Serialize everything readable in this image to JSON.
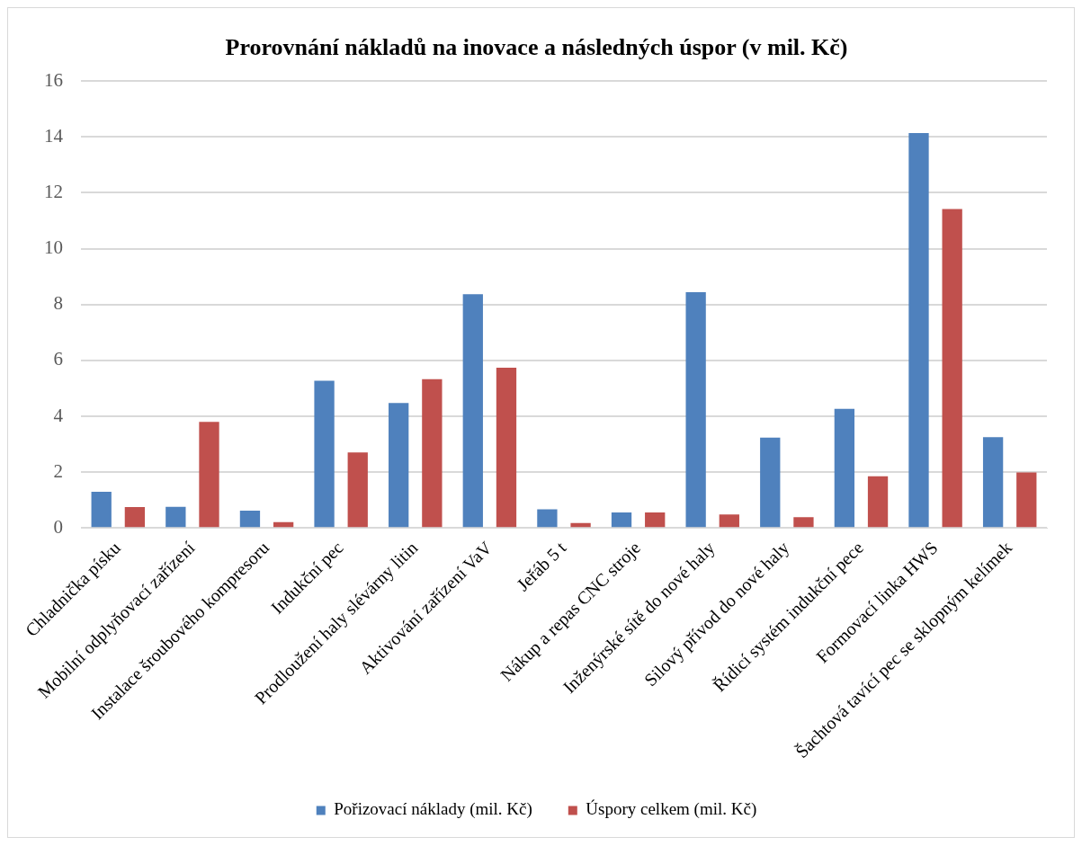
{
  "chart_data": {
    "type": "bar",
    "title": "Prorovnání nákladů na inovace a následných úspor (v mil. Kč)",
    "categories": [
      "Chladnička písku",
      "Mobilní odplyňovací zařízení",
      "Instalace šroubového kompresoru",
      "Indukční pec",
      "Prodloužení haly slévárny litin",
      "Aktivování zařízení VaV",
      "Jeřáb 5 t",
      "Nákup a repas CNC stroje",
      "Inženýrské sítě do nové haly",
      "Silový přívod do nové haly",
      "Řídicí systém indukční pece",
      "Formovací linka HWS",
      "Šachtová tavící pec se sklopným kelímek"
    ],
    "series": [
      {
        "name": "Pořizovací náklady (mil. Kč)",
        "color": "#4f81bd",
        "values": [
          1.3,
          0.76,
          0.62,
          5.27,
          4.48,
          8.37,
          0.67,
          0.56,
          8.44,
          3.24,
          4.27,
          14.14,
          3.25
        ]
      },
      {
        "name": "Úspory celkem (mil. Kč)",
        "color": "#c0504d",
        "values": [
          0.75,
          3.8,
          0.21,
          2.71,
          5.33,
          5.74,
          0.18,
          0.56,
          0.49,
          0.39,
          1.85,
          11.42,
          1.99
        ]
      }
    ],
    "ylim": [
      0,
      16
    ],
    "yticks": [
      0,
      2,
      4,
      6,
      8,
      10,
      12,
      14,
      16
    ],
    "grid": "y",
    "legend": "bottom"
  }
}
